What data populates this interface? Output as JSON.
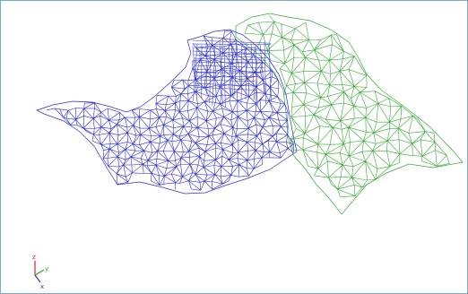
{
  "viewport": {
    "mesh_colors": {
      "blue": "#2b2bd6",
      "green": "#34a834"
    },
    "axes": {
      "z_label": "z",
      "y_label": "y",
      "x_label": "x",
      "z_color": "#d22b2b",
      "y_color": "#2da12d",
      "x_color": "#2b2bd6"
    }
  }
}
